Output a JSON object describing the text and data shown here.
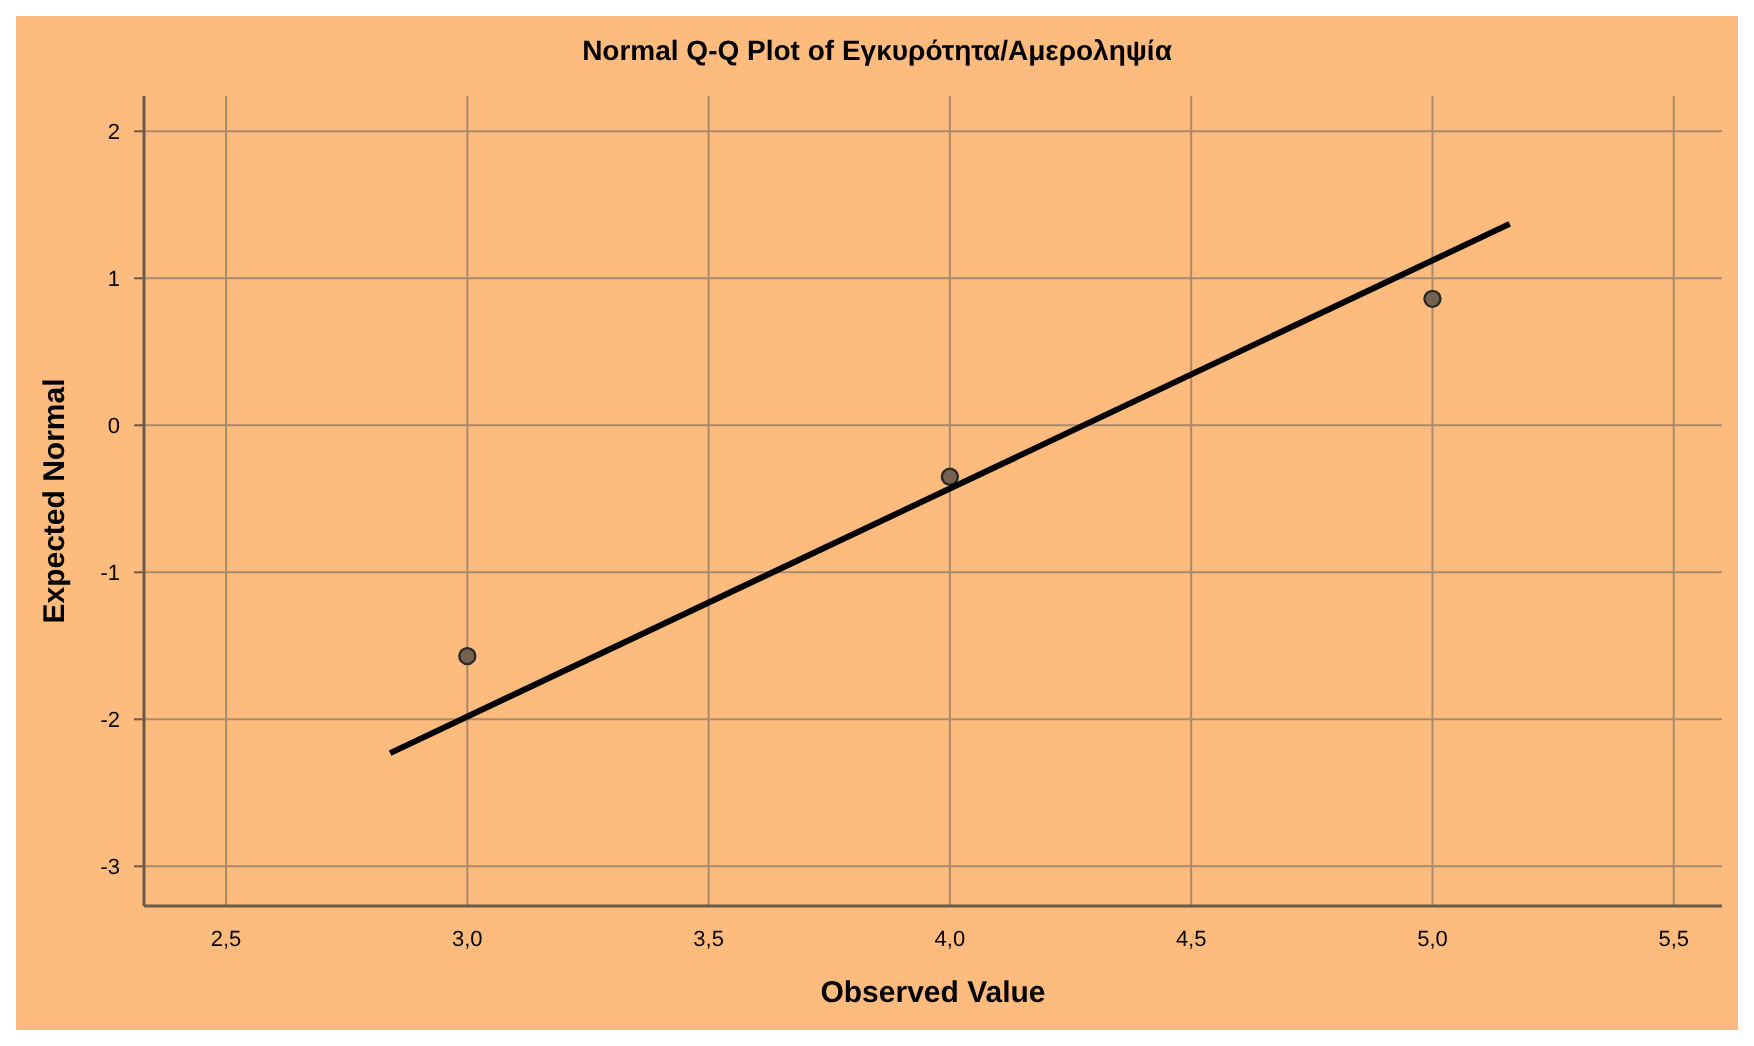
{
  "chart_data": {
    "type": "scatter",
    "title": "Normal Q-Q Plot of Εγκυρότητα/Αμεροληψία",
    "xlabel": "Observed Value",
    "ylabel": "Expected Normal",
    "xlim": [
      2.33,
      5.6
    ],
    "ylim": [
      -3.27,
      2.24
    ],
    "xticks": [
      {
        "value": 2.5,
        "label": "2,5"
      },
      {
        "value": 3,
        "label": "3,0"
      },
      {
        "value": 3.5,
        "label": "3,5"
      },
      {
        "value": 4,
        "label": "4,0"
      },
      {
        "value": 4.5,
        "label": "4,5"
      },
      {
        "value": 5,
        "label": "5,0"
      },
      {
        "value": 5.5,
        "label": "5,5"
      }
    ],
    "yticks": [
      -3,
      -2,
      -1,
      0,
      1,
      2
    ],
    "grid": true,
    "series": [
      {
        "marker": "circle",
        "color": "#76624e",
        "x": [
          3,
          4,
          5
        ],
        "values": [
          -1.57,
          -0.35,
          0.86
        ]
      },
      {
        "type": "line",
        "color": "#000000",
        "x": [
          2.84,
          5.16
        ],
        "values": [
          -2.23,
          1.37
        ],
        "line_style": "solid"
      }
    ]
  }
}
